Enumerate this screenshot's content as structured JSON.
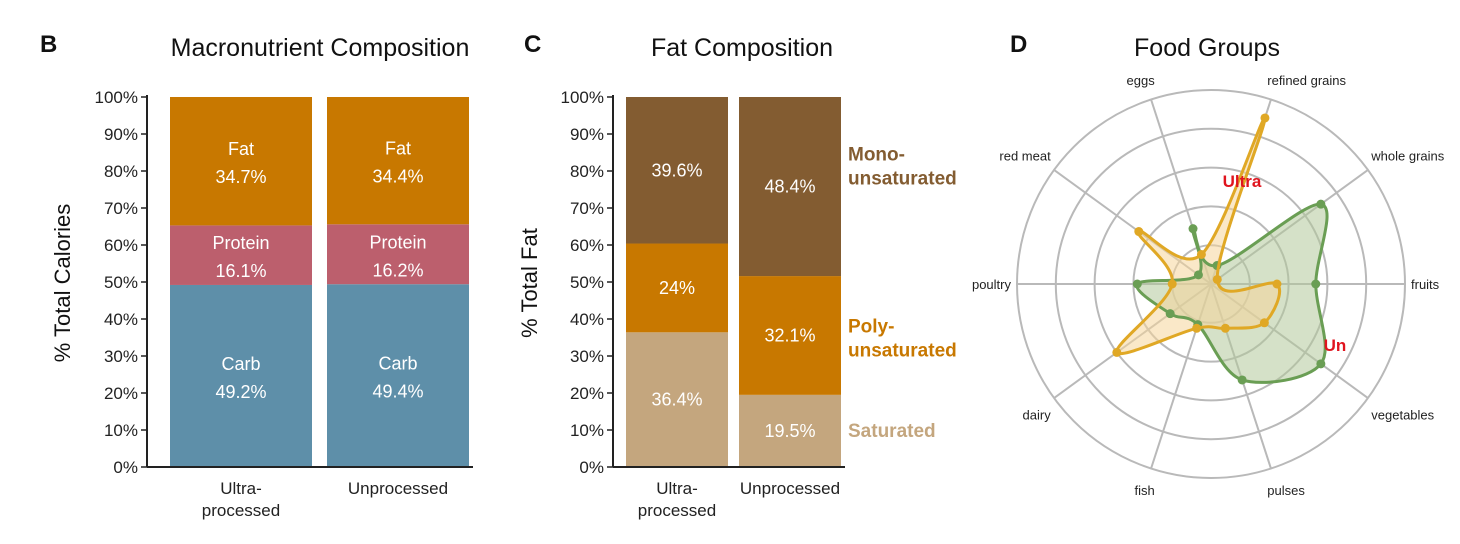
{
  "panels": {
    "B": "B",
    "C": "C",
    "D": "D"
  },
  "chart_data": [
    {
      "type": "bar",
      "stacked": true,
      "title": "Macronutrient Composition",
      "ylabel": "% Total Calories",
      "xlabel": "",
      "ylim": [
        0,
        100
      ],
      "yticks": [
        "0%",
        "10%",
        "20%",
        "30%",
        "40%",
        "50%",
        "60%",
        "70%",
        "80%",
        "90%",
        "100%"
      ],
      "categories": [
        "Ultra-\nprocessed",
        "Unprocessed"
      ],
      "series": [
        {
          "name": "Carb",
          "color": "#5e8fa9",
          "values": [
            49.2,
            49.4
          ],
          "labels": [
            "49.2%",
            "49.4%"
          ]
        },
        {
          "name": "Protein",
          "color": "#bc5f6d",
          "values": [
            16.1,
            16.2
          ],
          "labels": [
            "16.1%",
            "16.2%"
          ]
        },
        {
          "name": "Fat",
          "color": "#c87800",
          "values": [
            34.7,
            34.4
          ],
          "labels": [
            "34.7%",
            "34.4%"
          ]
        }
      ]
    },
    {
      "type": "bar",
      "stacked": true,
      "title": "Fat Composition",
      "ylabel": "% Total Fat",
      "xlabel": "",
      "ylim": [
        0,
        100
      ],
      "yticks": [
        "0%",
        "10%",
        "20%",
        "30%",
        "40%",
        "50%",
        "60%",
        "70%",
        "80%",
        "90%",
        "100%"
      ],
      "categories": [
        "Ultra-\nprocessed",
        "Unprocessed"
      ],
      "series": [
        {
          "name": "Saturated",
          "legend": "Saturated",
          "color": "#c4a67e",
          "values": [
            36.4,
            19.5
          ],
          "labels": [
            "36.4%",
            "19.5%"
          ]
        },
        {
          "name": "Poly-unsaturated",
          "legend": "Poly-\nunsaturated",
          "color": "#c87800",
          "values": [
            24.0,
            32.1
          ],
          "labels": [
            "24%",
            "32.1%"
          ]
        },
        {
          "name": "Mono-unsaturated",
          "legend": "Mono-\nunsaturated",
          "color": "#835c31",
          "values": [
            39.6,
            48.4
          ],
          "labels": [
            "39.6%",
            "48.4%"
          ]
        }
      ]
    },
    {
      "type": "radar",
      "title": "Food Groups",
      "axes": [
        "fruits",
        "whole grains",
        "refined grains",
        "eggs",
        "red meat",
        "poultry",
        "dairy",
        "fish",
        "pulses",
        "vegetables"
      ],
      "rmax": 5,
      "rings": 5,
      "series": [
        {
          "name": "Ultra",
          "label": "Ultra",
          "color": "#e0a825",
          "fill": "#f5d59a",
          "values": [
            1.7,
            0.2,
            4.5,
            0.8,
            2.3,
            1.0,
            3.0,
            1.2,
            1.2,
            1.7
          ]
        },
        {
          "name": "Un",
          "label": "Un",
          "color": "#6a9e54",
          "fill": "#b2c99a",
          "values": [
            2.7,
            3.5,
            0.5,
            1.5,
            0.4,
            1.9,
            1.3,
            1.1,
            2.6,
            3.5
          ]
        }
      ]
    }
  ]
}
